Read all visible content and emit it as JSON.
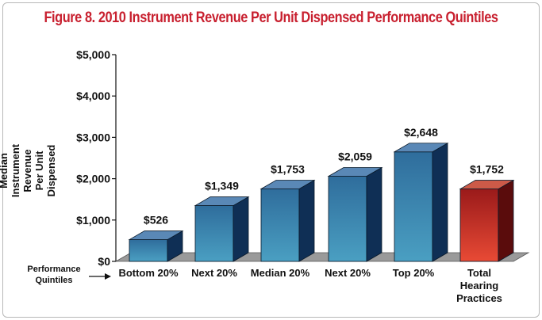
{
  "title": "Figure 8. 2010 Instrument Revenue Per Unit Dispensed Performance Quintiles",
  "side_label": "Performance Quintiles",
  "colors": {
    "title": "#c8202f",
    "bar_blue_front_top": "#2f6d9c",
    "bar_blue_front_bottom": "#4a9fc2",
    "bar_blue_side": "#0f2f55",
    "bar_blue_top": "#5a88b6",
    "bar_red_front_top": "#9a1a1a",
    "bar_red_front_bottom": "#e84a35",
    "bar_red_side": "#5a0c0c",
    "bar_red_top": "#cc5a48",
    "floor": "#9a9a9a"
  },
  "chart_data": {
    "type": "bar",
    "title": "Figure 8. 2010 Instrument Revenue Per Unit Dispensed Performance Quintiles",
    "ylabel": "Median Instrument Revenue Per Unit Dispensed",
    "xlabel": "Performance Quintiles",
    "categories": [
      [
        "Bottom 20%"
      ],
      [
        "Next 20%"
      ],
      [
        "Median 20%"
      ],
      [
        "Next 20%"
      ],
      [
        "Top 20%"
      ],
      [
        "Total",
        "Hearing",
        "Practices"
      ]
    ],
    "values": [
      526,
      1349,
      1753,
      2059,
      2648,
      1752
    ],
    "value_labels": [
      "$526",
      "$1,349",
      "$1,753",
      "$2,059",
      "$2,648",
      "$1,752"
    ],
    "highlight_index": 5,
    "ylim": [
      0,
      5000
    ],
    "yticks": [
      0,
      1000,
      2000,
      3000,
      4000,
      5000
    ],
    "ytick_labels": [
      "$0",
      "$1,000",
      "$2,000",
      "$3,000",
      "$4,000",
      "$5,000"
    ],
    "grid": false,
    "legend": "none"
  }
}
